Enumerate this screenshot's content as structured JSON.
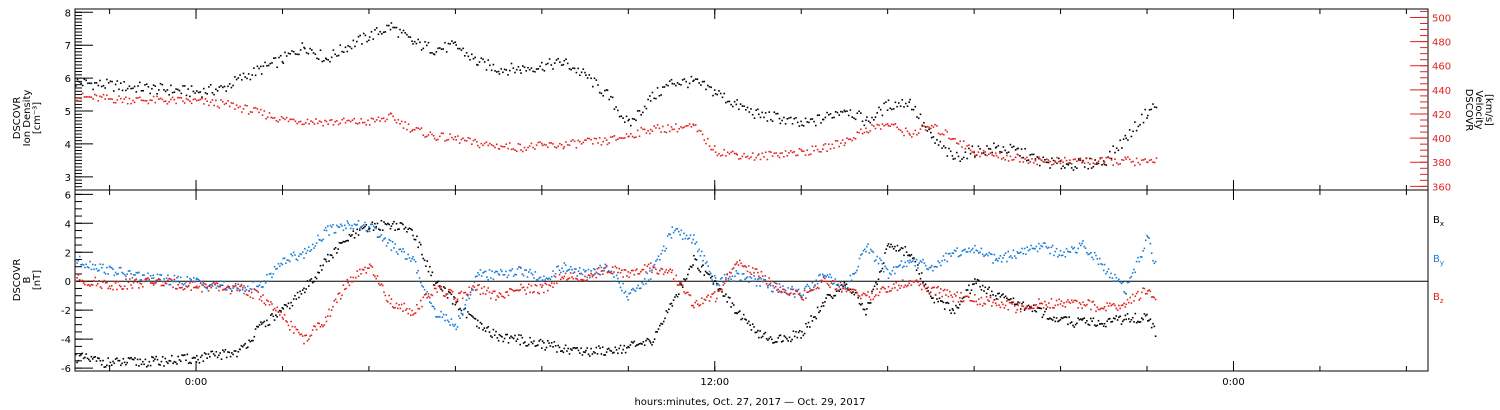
{
  "chart_data": [
    {
      "type": "line",
      "title": "",
      "ylabel": [
        "DSCOVR",
        "Ion Density",
        "[cm⁻³]"
      ],
      "ylim": [
        2.6,
        8.1
      ],
      "yticks": [
        3,
        4,
        5,
        6,
        7,
        8
      ],
      "y2label": [
        "DSCOVR",
        "Velocity",
        "[km/s]"
      ],
      "y2lim": [
        357,
        507
      ],
      "y2ticks": [
        360,
        380,
        400,
        420,
        440,
        460,
        480,
        500
      ],
      "xlim_hours": [
        -2.8,
        28.5
      ],
      "series": [
        {
          "color": "#000000",
          "axis": "left",
          "x": [
            -2.8,
            -2,
            -1,
            0,
            0.6,
            1,
            1.5,
            2,
            2.5,
            3,
            3.5,
            4,
            4.5,
            5,
            5.5,
            6,
            6.5,
            7,
            7.5,
            8,
            8.5,
            9,
            9.5,
            10,
            10.5,
            11,
            11.5,
            12,
            12.5,
            13,
            13.5,
            14,
            14.5,
            15,
            15.5,
            16,
            16.5,
            17,
            17.5,
            18,
            18.5,
            19,
            19.5,
            20,
            20.5,
            21,
            21.5,
            22,
            22.2
          ],
          "y": [
            5.9,
            5.8,
            5.7,
            5.6,
            5.7,
            6.0,
            6.3,
            6.6,
            7.0,
            6.6,
            7.0,
            7.3,
            7.6,
            7.1,
            6.9,
            7.0,
            6.5,
            6.3,
            6.3,
            6.4,
            6.5,
            6.1,
            5.5,
            4.6,
            5.4,
            5.9,
            5.9,
            5.6,
            5.2,
            4.9,
            4.8,
            4.6,
            4.8,
            5.1,
            4.7,
            5.2,
            5.3,
            4.2,
            3.6,
            3.8,
            3.9,
            3.8,
            3.5,
            3.4,
            3.4,
            3.5,
            4.2,
            5.0,
            5.2
          ]
        },
        {
          "color": "#e0231f",
          "axis": "right",
          "x": [
            -2.8,
            -2,
            -1,
            0,
            0.8,
            1.2,
            2,
            3,
            4,
            4.5,
            5,
            5.5,
            6,
            6.5,
            7,
            7.5,
            8,
            8.5,
            9,
            9.5,
            10,
            10.5,
            11,
            11.5,
            12,
            12.5,
            13,
            13.5,
            14,
            14.5,
            15,
            15.5,
            16,
            16.5,
            17,
            17.5,
            18,
            18.5,
            19,
            19.5,
            20,
            20.5,
            21,
            21.5,
            22,
            22.2
          ],
          "y": [
            435,
            433,
            432,
            431,
            428,
            424,
            416,
            414,
            414,
            418,
            408,
            402,
            400,
            396,
            394,
            393,
            394,
            395,
            397,
            398,
            403,
            408,
            409,
            410,
            390,
            387,
            385,
            388,
            389,
            392,
            398,
            408,
            412,
            404,
            410,
            401,
            389,
            386,
            384,
            382,
            381,
            382,
            381,
            382,
            380,
            382
          ]
        }
      ]
    },
    {
      "type": "line",
      "title": "",
      "ylabel": [
        "DSCOVR",
        "B",
        "[nT]"
      ],
      "ylim": [
        -6.2,
        6.3
      ],
      "yticks": [
        -6,
        -4,
        -2,
        0,
        2,
        4,
        6
      ],
      "zero_line": true,
      "legend": [
        {
          "label": "B",
          "sub": "x",
          "color": "#000000"
        },
        {
          "label": "B",
          "sub": "y",
          "color": "#1b7cd8"
        },
        {
          "label": "B",
          "sub": "z",
          "color": "#e0231f"
        }
      ],
      "xlim_hours": [
        -2.8,
        28.5
      ],
      "series": [
        {
          "name": "Bx",
          "color": "#000000",
          "x": [
            -2.8,
            -2,
            -1,
            0,
            1,
            1.5,
            2,
            2.5,
            3,
            3.5,
            4,
            4.5,
            5,
            5.5,
            6,
            6.5,
            7,
            7.5,
            8,
            8.5,
            9,
            9.5,
            10,
            10.5,
            11,
            11.5,
            12,
            12.5,
            13,
            13.5,
            14,
            14.5,
            15,
            15.5,
            16,
            16.5,
            17,
            17.5,
            18,
            18.5,
            19,
            19.5,
            20,
            20.5,
            21,
            21.5,
            22,
            22.2
          ],
          "y": [
            -5.2,
            -5.6,
            -5.5,
            -5.3,
            -4.8,
            -3,
            -2,
            -0.5,
            1.5,
            3,
            3.8,
            4.0,
            3.5,
            0,
            -1.5,
            -3,
            -3.8,
            -4.0,
            -4.3,
            -4.6,
            -4.8,
            -4.7,
            -4.5,
            -4.2,
            -1.5,
            1.5,
            0,
            -2,
            -3.7,
            -4.0,
            -3.5,
            -1.5,
            0,
            -2,
            2.5,
            2.0,
            -1.0,
            -2.0,
            0,
            -1,
            -1.5,
            -2.0,
            -2.7,
            -2.8,
            -2.8,
            -2.5,
            -2.5,
            -3.5
          ]
        },
        {
          "name": "By",
          "color": "#1b7cd8",
          "x": [
            -2.8,
            -2,
            -1,
            0,
            1,
            1.5,
            2,
            2.5,
            3,
            3.5,
            4,
            4.5,
            5,
            5.5,
            6,
            6.5,
            7,
            7.5,
            8,
            8.5,
            9,
            9.5,
            10,
            10.5,
            11,
            11.5,
            12,
            12.5,
            13,
            13.5,
            14,
            14.5,
            15,
            15.5,
            16,
            16.5,
            17,
            17.5,
            18,
            18.5,
            19,
            19.5,
            20,
            20.5,
            21,
            21.5,
            22,
            22.2
          ],
          "y": [
            1.5,
            0.8,
            0.2,
            0,
            -0.5,
            -0.2,
            1.5,
            2.0,
            3.5,
            4.0,
            3.8,
            2.5,
            1.5,
            -2.0,
            -3.0,
            0.5,
            0.5,
            0.8,
            0.2,
            1.0,
            0.5,
            1.0,
            -1.0,
            0.5,
            3.5,
            3.0,
            0,
            0.5,
            0,
            -0.5,
            -0.8,
            0.5,
            -0.5,
            2.5,
            0.5,
            1.5,
            1.0,
            2.0,
            2.2,
            1.5,
            2.0,
            2.5,
            2.0,
            2.5,
            1.0,
            -0.5,
            3.0,
            1.0
          ]
        },
        {
          "name": "Bz",
          "color": "#e0231f",
          "x": [
            -2.8,
            -2,
            -1,
            0,
            1,
            1.5,
            2,
            2.5,
            3,
            3.5,
            4,
            4.5,
            5,
            5.5,
            6,
            6.5,
            7,
            7.5,
            8,
            8.5,
            9,
            9.5,
            10,
            10.5,
            11,
            11.5,
            12,
            12.5,
            13,
            13.5,
            14,
            14.5,
            15,
            15.5,
            16,
            16.5,
            17,
            17.5,
            18,
            18.5,
            19,
            19.5,
            20,
            20.5,
            21,
            21.5,
            22,
            22.2
          ],
          "y": [
            0.2,
            -0.2,
            0,
            -0.3,
            -0.5,
            -1.0,
            -2.5,
            -4.0,
            -2.5,
            0,
            1.0,
            -1.5,
            -2.0,
            -0.5,
            -1.0,
            -0.5,
            -1.0,
            -0.5,
            -0.5,
            0.5,
            0.2,
            1.0,
            0.5,
            1.0,
            0.5,
            -1.5,
            -1.0,
            1.5,
            0.5,
            -0.5,
            -1.0,
            0,
            -0.5,
            -1.0,
            -0.5,
            0,
            -0.5,
            -1.0,
            -1.2,
            -1.5,
            -1.8,
            -1.5,
            -1.5,
            -1.5,
            -1.8,
            -1.5,
            -0.5,
            -1.5
          ]
        }
      ]
    }
  ],
  "x_axis": {
    "ticks": [
      {
        "hours": 0,
        "label": "0:00"
      },
      {
        "hours": 12,
        "label": "12:00"
      },
      {
        "hours": 24,
        "label": "0:00"
      }
    ],
    "minor_step_hours": 2,
    "label": "hours:minutes, Oct. 27, 2017 — Oct. 29, 2017"
  }
}
